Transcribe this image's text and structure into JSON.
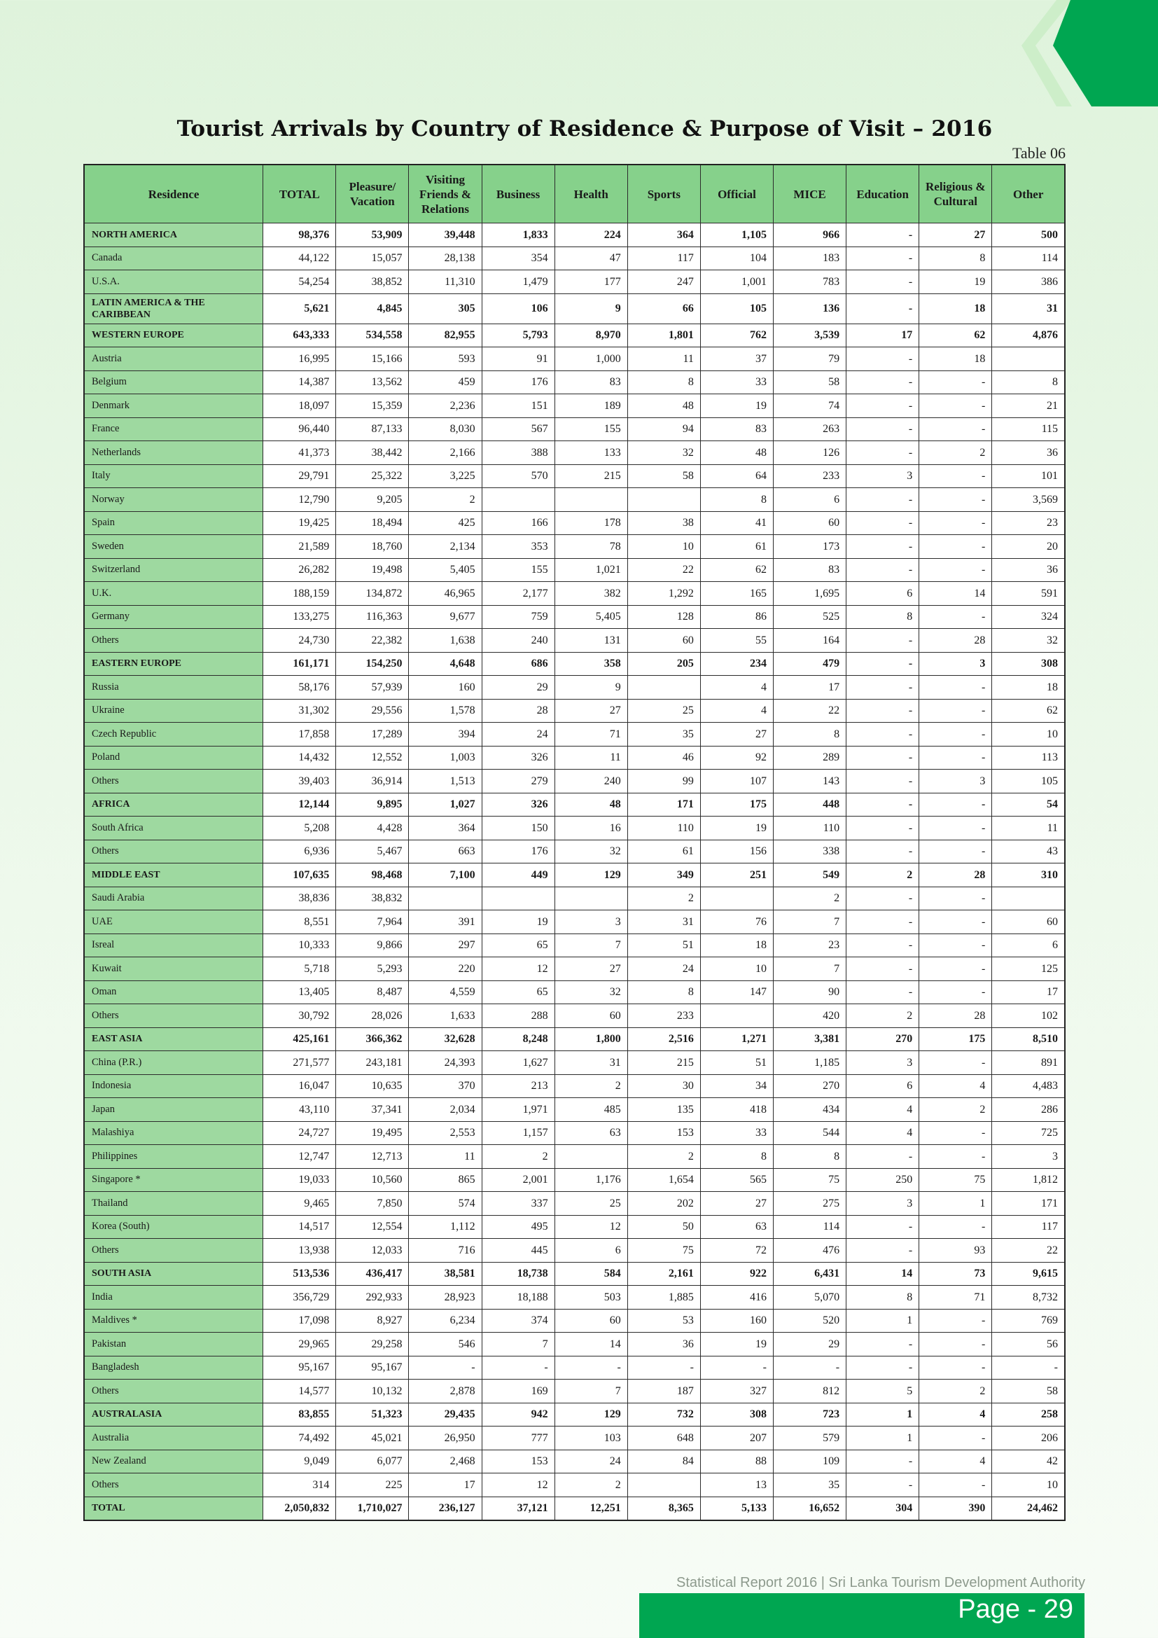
{
  "title": "Tourist Arrivals by Country of Residence & Purpose of Visit – 2016",
  "table_label": "Table 06",
  "headers": [
    "Residence",
    "TOTAL",
    "Pleasure/ Vacation",
    "Visiting Friends & Relations",
    "Business",
    "Health",
    "Sports",
    "Official",
    "MICE",
    "Education",
    "Religious & Cultural",
    "Other"
  ],
  "rows": [
    {
      "r": "NORTH AMERICA",
      "g": true,
      "v": [
        "98,376",
        "53,909",
        "39,448",
        "1,833",
        "224",
        "364",
        "1,105",
        "966",
        "-",
        "27",
        "500"
      ]
    },
    {
      "r": "Canada",
      "v": [
        "44,122",
        "15,057",
        "28,138",
        "354",
        "47",
        "117",
        "104",
        "183",
        "-",
        "8",
        "114"
      ]
    },
    {
      "r": "U.S.A.",
      "v": [
        "54,254",
        "38,852",
        "11,310",
        "1,479",
        "177",
        "247",
        "1,001",
        "783",
        "-",
        "19",
        "386"
      ]
    },
    {
      "r": "LATIN AMERICA & THE CARIBBEAN",
      "g": true,
      "tall": true,
      "v": [
        "5,621",
        "4,845",
        "305",
        "106",
        "9",
        "66",
        "105",
        "136",
        "-",
        "18",
        "31"
      ]
    },
    {
      "r": "WESTERN EUROPE",
      "g": true,
      "v": [
        "643,333",
        "534,558",
        "82,955",
        "5,793",
        "8,970",
        "1,801",
        "762",
        "3,539",
        "17",
        "62",
        "4,876"
      ]
    },
    {
      "r": "Austria",
      "v": [
        "16,995",
        "15,166",
        "593",
        "91",
        "1,000",
        "11",
        "37",
        "79",
        "-",
        "18",
        ""
      ]
    },
    {
      "r": "Belgium",
      "v": [
        "14,387",
        "13,562",
        "459",
        "176",
        "83",
        "8",
        "33",
        "58",
        "-",
        "-",
        "8"
      ]
    },
    {
      "r": "Denmark",
      "v": [
        "18,097",
        "15,359",
        "2,236",
        "151",
        "189",
        "48",
        "19",
        "74",
        "-",
        "-",
        "21"
      ]
    },
    {
      "r": "France",
      "v": [
        "96,440",
        "87,133",
        "8,030",
        "567",
        "155",
        "94",
        "83",
        "263",
        "-",
        "-",
        "115"
      ]
    },
    {
      "r": "Netherlands",
      "v": [
        "41,373",
        "38,442",
        "2,166",
        "388",
        "133",
        "32",
        "48",
        "126",
        "-",
        "2",
        "36"
      ]
    },
    {
      "r": "Italy",
      "v": [
        "29,791",
        "25,322",
        "3,225",
        "570",
        "215",
        "58",
        "64",
        "233",
        "3",
        "-",
        "101"
      ]
    },
    {
      "r": "Norway",
      "v": [
        "12,790",
        "9,205",
        "2",
        "",
        "",
        "",
        "8",
        "6",
        "-",
        "-",
        "3,569"
      ]
    },
    {
      "r": "Spain",
      "v": [
        "19,425",
        "18,494",
        "425",
        "166",
        "178",
        "38",
        "41",
        "60",
        "-",
        "-",
        "23"
      ]
    },
    {
      "r": "Sweden",
      "v": [
        "21,589",
        "18,760",
        "2,134",
        "353",
        "78",
        "10",
        "61",
        "173",
        "-",
        "-",
        "20"
      ]
    },
    {
      "r": "Switzerland",
      "v": [
        "26,282",
        "19,498",
        "5,405",
        "155",
        "1,021",
        "22",
        "62",
        "83",
        "-",
        "-",
        "36"
      ]
    },
    {
      "r": "U.K.",
      "v": [
        "188,159",
        "134,872",
        "46,965",
        "2,177",
        "382",
        "1,292",
        "165",
        "1,695",
        "6",
        "14",
        "591"
      ]
    },
    {
      "r": "Germany",
      "v": [
        "133,275",
        "116,363",
        "9,677",
        "759",
        "5,405",
        "128",
        "86",
        "525",
        "8",
        "-",
        "324"
      ]
    },
    {
      "r": "Others",
      "v": [
        "24,730",
        "22,382",
        "1,638",
        "240",
        "131",
        "60",
        "55",
        "164",
        "-",
        "28",
        "32"
      ]
    },
    {
      "r": "EASTERN EUROPE",
      "g": true,
      "v": [
        "161,171",
        "154,250",
        "4,648",
        "686",
        "358",
        "205",
        "234",
        "479",
        "-",
        "3",
        "308"
      ]
    },
    {
      "r": "Russia",
      "v": [
        "58,176",
        "57,939",
        "160",
        "29",
        "9",
        "",
        "4",
        "17",
        "-",
        "-",
        "18"
      ]
    },
    {
      "r": "Ukraine",
      "v": [
        "31,302",
        "29,556",
        "1,578",
        "28",
        "27",
        "25",
        "4",
        "22",
        "-",
        "-",
        "62"
      ]
    },
    {
      "r": "Czech Republic",
      "v": [
        "17,858",
        "17,289",
        "394",
        "24",
        "71",
        "35",
        "27",
        "8",
        "-",
        "-",
        "10"
      ]
    },
    {
      "r": "Poland",
      "v": [
        "14,432",
        "12,552",
        "1,003",
        "326",
        "11",
        "46",
        "92",
        "289",
        "-",
        "-",
        "113"
      ]
    },
    {
      "r": "Others",
      "v": [
        "39,403",
        "36,914",
        "1,513",
        "279",
        "240",
        "99",
        "107",
        "143",
        "-",
        "3",
        "105"
      ]
    },
    {
      "r": "AFRICA",
      "g": true,
      "v": [
        "12,144",
        "9,895",
        "1,027",
        "326",
        "48",
        "171",
        "175",
        "448",
        "-",
        "-",
        "54"
      ]
    },
    {
      "r": "South Africa",
      "v": [
        "5,208",
        "4,428",
        "364",
        "150",
        "16",
        "110",
        "19",
        "110",
        "-",
        "-",
        "11"
      ]
    },
    {
      "r": "Others",
      "v": [
        "6,936",
        "5,467",
        "663",
        "176",
        "32",
        "61",
        "156",
        "338",
        "-",
        "-",
        "43"
      ]
    },
    {
      "r": "MIDDLE EAST",
      "g": true,
      "v": [
        "107,635",
        "98,468",
        "7,100",
        "449",
        "129",
        "349",
        "251",
        "549",
        "2",
        "28",
        "310"
      ]
    },
    {
      "r": "Saudi Arabia",
      "v": [
        "38,836",
        "38,832",
        "",
        "",
        "",
        "2",
        "",
        "2",
        "-",
        "-",
        ""
      ]
    },
    {
      "r": "UAE",
      "v": [
        "8,551",
        "7,964",
        "391",
        "19",
        "3",
        "31",
        "76",
        "7",
        "-",
        "-",
        "60"
      ]
    },
    {
      "r": "Isreal",
      "v": [
        "10,333",
        "9,866",
        "297",
        "65",
        "7",
        "51",
        "18",
        "23",
        "-",
        "-",
        "6"
      ]
    },
    {
      "r": "Kuwait",
      "v": [
        "5,718",
        "5,293",
        "220",
        "12",
        "27",
        "24",
        "10",
        "7",
        "-",
        "-",
        "125"
      ]
    },
    {
      "r": "Oman",
      "v": [
        "13,405",
        "8,487",
        "4,559",
        "65",
        "32",
        "8",
        "147",
        "90",
        "-",
        "-",
        "17"
      ]
    },
    {
      "r": "Others",
      "v": [
        "30,792",
        "28,026",
        "1,633",
        "288",
        "60",
        "233",
        "",
        "420",
        "2",
        "28",
        "102"
      ]
    },
    {
      "r": "EAST ASIA",
      "g": true,
      "v": [
        "425,161",
        "366,362",
        "32,628",
        "8,248",
        "1,800",
        "2,516",
        "1,271",
        "3,381",
        "270",
        "175",
        "8,510"
      ]
    },
    {
      "r": "China (P.R.)",
      "v": [
        "271,577",
        "243,181",
        "24,393",
        "1,627",
        "31",
        "215",
        "51",
        "1,185",
        "3",
        "-",
        "891"
      ]
    },
    {
      "r": "Indonesia",
      "v": [
        "16,047",
        "10,635",
        "370",
        "213",
        "2",
        "30",
        "34",
        "270",
        "6",
        "4",
        "4,483"
      ]
    },
    {
      "r": "Japan",
      "v": [
        "43,110",
        "37,341",
        "2,034",
        "1,971",
        "485",
        "135",
        "418",
        "434",
        "4",
        "2",
        "286"
      ]
    },
    {
      "r": "Malashiya",
      "v": [
        "24,727",
        "19,495",
        "2,553",
        "1,157",
        "63",
        "153",
        "33",
        "544",
        "4",
        "-",
        "725"
      ]
    },
    {
      "r": "Philippines",
      "v": [
        "12,747",
        "12,713",
        "11",
        "2",
        "",
        "2",
        "8",
        "8",
        "-",
        "-",
        "3"
      ]
    },
    {
      "r": "Singapore *",
      "v": [
        "19,033",
        "10,560",
        "865",
        "2,001",
        "1,176",
        "1,654",
        "565",
        "75",
        "250",
        "75",
        "1,812"
      ]
    },
    {
      "r": "Thailand",
      "v": [
        "9,465",
        "7,850",
        "574",
        "337",
        "25",
        "202",
        "27",
        "275",
        "3",
        "1",
        "171"
      ]
    },
    {
      "r": "Korea (South)",
      "v": [
        "14,517",
        "12,554",
        "1,112",
        "495",
        "12",
        "50",
        "63",
        "114",
        "-",
        "-",
        "117"
      ]
    },
    {
      "r": "Others",
      "v": [
        "13,938",
        "12,033",
        "716",
        "445",
        "6",
        "75",
        "72",
        "476",
        "-",
        "93",
        "22"
      ]
    },
    {
      "r": "SOUTH ASIA",
      "g": true,
      "v": [
        "513,536",
        "436,417",
        "38,581",
        "18,738",
        "584",
        "2,161",
        "922",
        "6,431",
        "14",
        "73",
        "9,615"
      ]
    },
    {
      "r": "India",
      "v": [
        "356,729",
        "292,933",
        "28,923",
        "18,188",
        "503",
        "1,885",
        "416",
        "5,070",
        "8",
        "71",
        "8,732"
      ]
    },
    {
      "r": "Maldives  *",
      "v": [
        "17,098",
        "8,927",
        "6,234",
        "374",
        "60",
        "53",
        "160",
        "520",
        "1",
        "-",
        "769"
      ]
    },
    {
      "r": "Pakistan",
      "v": [
        "29,965",
        "29,258",
        "546",
        "7",
        "14",
        "36",
        "19",
        "29",
        "-",
        "-",
        "56"
      ]
    },
    {
      "r": "Bangladesh",
      "v": [
        "95,167",
        "95,167",
        "-",
        "-",
        "-",
        "-",
        "-",
        "-",
        "-",
        "-",
        "-"
      ]
    },
    {
      "r": "Others",
      "v": [
        "14,577",
        "10,132",
        "2,878",
        "169",
        "7",
        "187",
        "327",
        "812",
        "5",
        "2",
        "58"
      ]
    },
    {
      "r": "AUSTRALASIA",
      "g": true,
      "v": [
        "83,855",
        "51,323",
        "29,435",
        "942",
        "129",
        "732",
        "308",
        "723",
        "1",
        "4",
        "258"
      ]
    },
    {
      "r": "Australia",
      "v": [
        "74,492",
        "45,021",
        "26,950",
        "777",
        "103",
        "648",
        "207",
        "579",
        "1",
        "-",
        "206"
      ]
    },
    {
      "r": "New Zealand",
      "v": [
        "9,049",
        "6,077",
        "2,468",
        "153",
        "24",
        "84",
        "88",
        "109",
        "-",
        "4",
        "42"
      ]
    },
    {
      "r": "Others",
      "v": [
        "314",
        "225",
        "17",
        "12",
        "2",
        "",
        "13",
        "35",
        "-",
        "-",
        "10"
      ]
    },
    {
      "r": "TOTAL",
      "g": true,
      "v": [
        "2,050,832",
        "1,710,027",
        "236,127",
        "37,121",
        "12,251",
        "8,365",
        "5,133",
        "16,652",
        "304",
        "390",
        "24,462"
      ]
    }
  ],
  "footer": "Statistical Report 2016  |  Sri Lanka Tourism Development Authority",
  "page_label": "Page - 29",
  "colors": {
    "header_green": "#86d18b",
    "residence_green": "#9ed9a0",
    "brand_green": "#00a651",
    "light_green": "#b7e6b3"
  }
}
